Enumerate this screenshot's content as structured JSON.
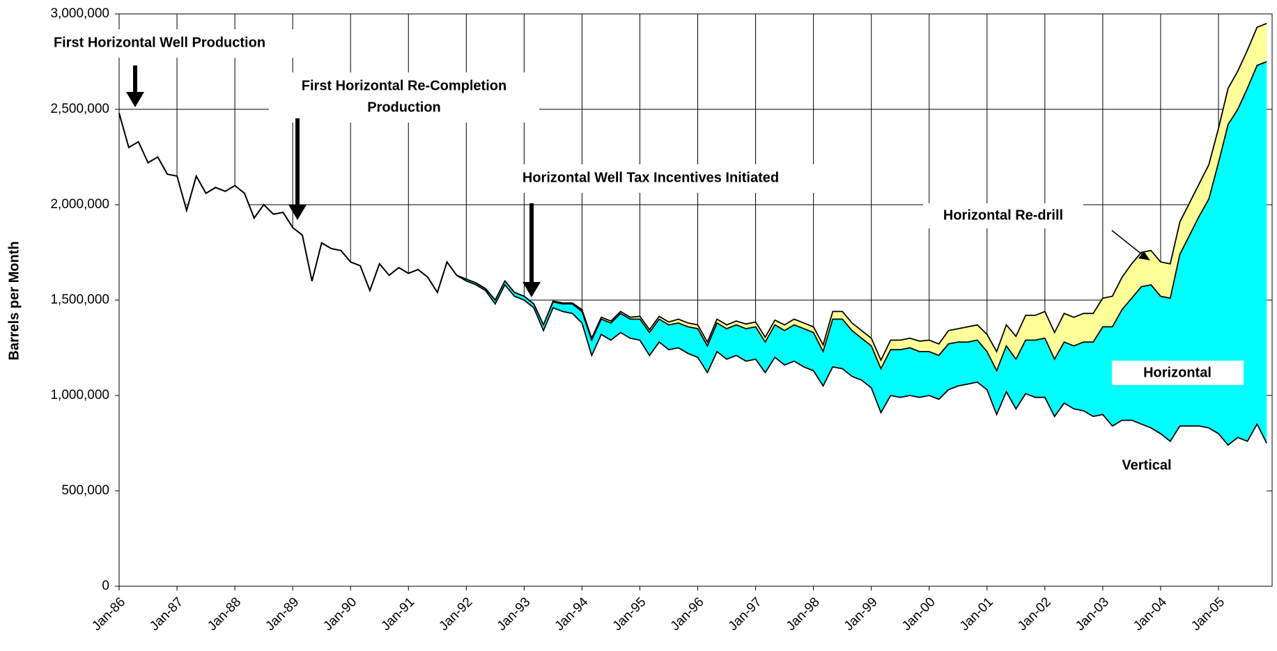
{
  "chart_data": {
    "type": "stacked_area",
    "y_label": "Barrels per Month",
    "ylim": [
      0,
      3000000
    ],
    "yticks": [
      0,
      {
        "value": 500000,
        "label": "500,000"
      },
      {
        "value": 1000000,
        "label": "1,000,000"
      },
      {
        "value": 1500000,
        "label": "1,500,000"
      },
      {
        "value": 2000000,
        "label": "2,000,000"
      },
      {
        "value": 2500000,
        "label": "2,500,000"
      },
      {
        "value": 3000000,
        "label": "3,000,000"
      }
    ],
    "grid": true,
    "categories": [
      "Jan-86",
      null,
      null,
      null,
      null,
      null,
      "Jan-87",
      null,
      null,
      null,
      null,
      null,
      "Jan-88",
      null,
      null,
      null,
      null,
      null,
      "Jan-89",
      null,
      null,
      null,
      null,
      null,
      "Jan-90",
      null,
      null,
      null,
      null,
      null,
      "Jan-91",
      null,
      null,
      null,
      null,
      null,
      "Jan-92",
      null,
      null,
      null,
      null,
      null,
      "Jan-93",
      null,
      null,
      null,
      null,
      null,
      "Jan-94",
      null,
      null,
      null,
      null,
      null,
      "Jan-95",
      null,
      null,
      null,
      null,
      null,
      "Jan-96",
      null,
      null,
      null,
      null,
      null,
      "Jan-97",
      null,
      null,
      null,
      null,
      null,
      "Jan-98",
      null,
      null,
      null,
      null,
      null,
      "Jan-99",
      null,
      null,
      null,
      null,
      null,
      "Jan-00",
      null,
      null,
      null,
      null,
      null,
      "Jan-01",
      null,
      null,
      null,
      null,
      null,
      "Jan-02",
      null,
      null,
      null,
      null,
      null,
      "Jan-03",
      null,
      null,
      null,
      null,
      null,
      "Jan-04",
      null,
      null,
      null,
      null,
      null,
      "Jan-05",
      null,
      null,
      null,
      null,
      null
    ],
    "series": [
      {
        "name": "Vertical",
        "color": "#ffffff",
        "values": [
          2480000,
          2300000,
          2330000,
          2220000,
          2250000,
          2160000,
          2150000,
          1970000,
          2150000,
          2060000,
          2090000,
          2070000,
          2100000,
          2060000,
          1930000,
          2000000,
          1950000,
          1960000,
          1880000,
          1840000,
          1600000,
          1800000,
          1770000,
          1760000,
          1700000,
          1680000,
          1550000,
          1690000,
          1630000,
          1670000,
          1640000,
          1660000,
          1620000,
          1540000,
          1700000,
          1630000,
          1600000,
          1580000,
          1550000,
          1480000,
          1580000,
          1520000,
          1500000,
          1460000,
          1340000,
          1460000,
          1440000,
          1430000,
          1380000,
          1210000,
          1320000,
          1290000,
          1330000,
          1300000,
          1290000,
          1210000,
          1280000,
          1240000,
          1250000,
          1220000,
          1200000,
          1120000,
          1230000,
          1190000,
          1210000,
          1180000,
          1190000,
          1120000,
          1200000,
          1160000,
          1180000,
          1150000,
          1130000,
          1050000,
          1150000,
          1140000,
          1100000,
          1080000,
          1040000,
          910000,
          1000000,
          990000,
          1000000,
          990000,
          1000000,
          980000,
          1030000,
          1050000,
          1060000,
          1070000,
          1030000,
          900000,
          1020000,
          930000,
          1010000,
          990000,
          990000,
          890000,
          960000,
          930000,
          920000,
          890000,
          900000,
          840000,
          870000,
          870000,
          850000,
          830000,
          800000,
          760000,
          840000,
          840000,
          840000,
          830000,
          800000,
          740000,
          780000,
          760000,
          850000,
          750000
        ]
      },
      {
        "name": "Horizontal",
        "color": "#00ffff",
        "values": [
          0,
          0,
          0,
          0,
          0,
          0,
          0,
          0,
          0,
          0,
          0,
          0,
          0,
          0,
          0,
          0,
          0,
          0,
          0,
          0,
          0,
          0,
          0,
          0,
          0,
          0,
          0,
          0,
          0,
          0,
          0,
          0,
          0,
          0,
          0,
          0,
          10000,
          10000,
          10000,
          20000,
          20000,
          20000,
          20000,
          20000,
          30000,
          30000,
          40000,
          50000,
          60000,
          80000,
          80000,
          90000,
          100000,
          100000,
          110000,
          120000,
          120000,
          130000,
          130000,
          140000,
          150000,
          140000,
          150000,
          160000,
          160000,
          170000,
          170000,
          160000,
          170000,
          180000,
          190000,
          200000,
          200000,
          180000,
          250000,
          260000,
          240000,
          220000,
          220000,
          230000,
          240000,
          250000,
          250000,
          240000,
          230000,
          230000,
          240000,
          230000,
          220000,
          220000,
          200000,
          230000,
          240000,
          260000,
          280000,
          300000,
          310000,
          300000,
          320000,
          330000,
          360000,
          390000,
          460000,
          520000,
          580000,
          640000,
          720000,
          750000,
          720000,
          750000,
          900000,
          1000000,
          1100000,
          1200000,
          1420000,
          1680000,
          1720000,
          1850000,
          1880000,
          2000000
        ]
      },
      {
        "name": "Horizontal Re-drill",
        "color": "#ffff99",
        "values": [
          0,
          0,
          0,
          0,
          0,
          0,
          0,
          0,
          0,
          0,
          0,
          0,
          0,
          0,
          0,
          0,
          0,
          0,
          0,
          0,
          0,
          0,
          0,
          0,
          0,
          0,
          0,
          0,
          0,
          0,
          0,
          0,
          0,
          0,
          0,
          0,
          0,
          0,
          0,
          0,
          0,
          0,
          0,
          0,
          0,
          5000,
          5000,
          5000,
          10000,
          10000,
          10000,
          10000,
          10000,
          10000,
          15000,
          15000,
          15000,
          15000,
          20000,
          20000,
          20000,
          20000,
          20000,
          20000,
          20000,
          25000,
          25000,
          25000,
          25000,
          30000,
          30000,
          30000,
          30000,
          35000,
          40000,
          40000,
          40000,
          40000,
          40000,
          45000,
          50000,
          50000,
          50000,
          55000,
          60000,
          60000,
          70000,
          70000,
          80000,
          80000,
          90000,
          100000,
          110000,
          120000,
          130000,
          130000,
          140000,
          140000,
          150000,
          150000,
          150000,
          150000,
          150000,
          160000,
          170000,
          180000,
          180000,
          180000,
          180000,
          180000,
          170000,
          170000,
          170000,
          180000,
          180000,
          190000,
          200000,
          200000,
          200000,
          200000
        ]
      }
    ],
    "annotations": [
      {
        "lines": [
          "First Horizontal Well Production"
        ]
      },
      {
        "lines": [
          "First Horizontal Re-Completion",
          "Production"
        ]
      },
      {
        "lines": [
          "Horizontal Well Tax Incentives Initiated"
        ]
      }
    ]
  }
}
